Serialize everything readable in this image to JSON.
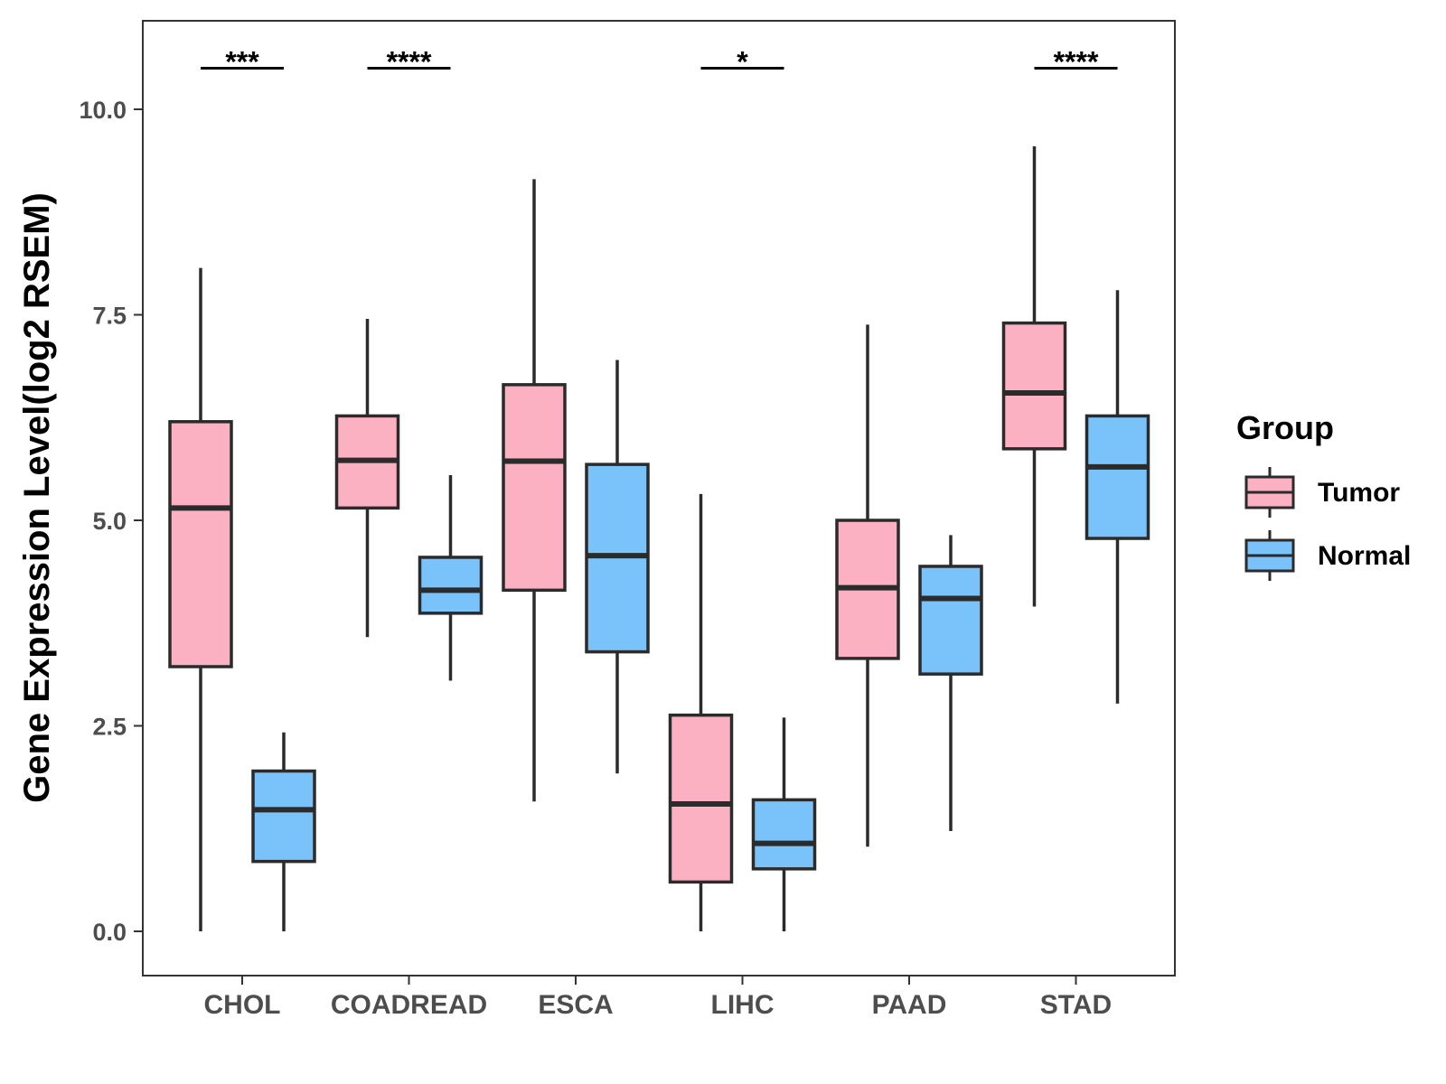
{
  "chart_data": {
    "type": "boxplot",
    "title": "",
    "xlabel": "",
    "ylabel": "Gene Expression Level(log2 RSEM)",
    "ylim": [
      -0.5,
      11.1
    ],
    "yticks": [
      "0.0",
      "2.5",
      "5.0",
      "7.5",
      "10.0"
    ],
    "ytick_values": [
      0,
      2.5,
      5,
      7.5,
      10
    ],
    "grid": false,
    "categories": [
      "CHOL",
      "COADREAD",
      "ESCA",
      "LIHC",
      "PAAD",
      "STAD"
    ],
    "legend": {
      "title": "Group",
      "position": "right",
      "entries": [
        {
          "name": "Tumor",
          "color": "#fcb1c3"
        },
        {
          "name": "Normal",
          "color": "#79c2fa"
        }
      ]
    },
    "series": [
      {
        "name": "Tumor",
        "color": "#fcb1c3",
        "boxes": [
          {
            "min": 0.0,
            "q1": 3.22,
            "median": 5.15,
            "q3": 6.2,
            "max": 8.07
          },
          {
            "min": 3.58,
            "q1": 5.15,
            "median": 5.73,
            "q3": 6.27,
            "max": 7.45
          },
          {
            "min": 1.58,
            "q1": 4.15,
            "median": 5.72,
            "q3": 6.65,
            "max": 9.15
          },
          {
            "min": 0.0,
            "q1": 0.6,
            "median": 1.55,
            "q3": 2.63,
            "max": 5.32
          },
          {
            "min": 1.03,
            "q1": 3.32,
            "median": 4.18,
            "q3": 5.0,
            "max": 7.38
          },
          {
            "min": 3.95,
            "q1": 5.87,
            "median": 6.55,
            "q3": 7.4,
            "max": 9.55
          }
        ]
      },
      {
        "name": "Normal",
        "color": "#79c2fa",
        "boxes": [
          {
            "min": 0.0,
            "q1": 0.85,
            "median": 1.48,
            "q3": 1.95,
            "max": 2.42
          },
          {
            "min": 3.05,
            "q1": 3.87,
            "median": 4.15,
            "q3": 4.55,
            "max": 5.55
          },
          {
            "min": 1.92,
            "q1": 3.4,
            "median": 4.57,
            "q3": 5.68,
            "max": 6.95
          },
          {
            "min": 0.0,
            "q1": 0.76,
            "median": 1.07,
            "q3": 1.6,
            "max": 2.6
          },
          {
            "min": 1.22,
            "q1": 3.13,
            "median": 4.05,
            "q3": 4.44,
            "max": 4.82
          },
          {
            "min": 2.77,
            "q1": 4.78,
            "median": 5.65,
            "q3": 6.27,
            "max": 7.8
          }
        ]
      }
    ],
    "annotations": [
      {
        "category": "CHOL",
        "label": "***"
      },
      {
        "category": "COADREAD",
        "label": "****"
      },
      {
        "category": "LIHC",
        "label": "*"
      },
      {
        "category": "STAD",
        "label": "****"
      }
    ],
    "annotation_y": 10.5
  }
}
